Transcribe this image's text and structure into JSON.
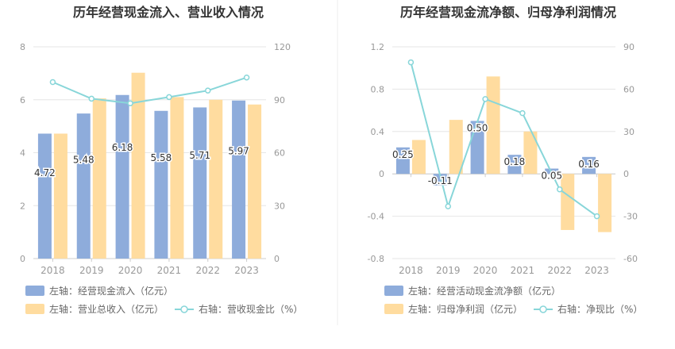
{
  "chart_data": [
    {
      "type": "bar",
      "title": "历年经营现金流入、营业收入情况",
      "categories": [
        "2018",
        "2019",
        "2020",
        "2021",
        "2022",
        "2023"
      ],
      "left_axis": {
        "ylim": [
          0,
          8
        ],
        "ticks": [
          "0",
          "2",
          "4",
          "6",
          "8"
        ]
      },
      "right_axis": {
        "ylim": [
          0,
          120
        ],
        "ticks": [
          "0",
          "30",
          "60",
          "90",
          "120"
        ]
      },
      "grid": true,
      "legend_placement": "bottom",
      "series": [
        {
          "name": "左轴：经营现金流入（亿元）",
          "kind": "bar",
          "axis": "left",
          "color": "#8eacdb",
          "values": [
            4.72,
            5.48,
            6.18,
            5.58,
            5.71,
            5.97
          ],
          "labels": [
            "4.72",
            "5.48",
            "6.18",
            "5.58",
            "5.71",
            "5.97"
          ]
        },
        {
          "name": "左轴：营业总收入（亿元）",
          "kind": "bar",
          "axis": "left",
          "color": "#ffdc9f",
          "values": [
            4.72,
            6.05,
            7.02,
            6.1,
            6.0,
            5.82
          ]
        },
        {
          "name": "右轴：营收现金比（%）",
          "kind": "line",
          "axis": "right",
          "color": "#88d6d9",
          "values": [
            100.0,
            90.6,
            88.0,
            91.5,
            95.2,
            102.6
          ]
        }
      ]
    },
    {
      "type": "bar",
      "title": "历年经营现金流净额、归母净利润情况",
      "categories": [
        "2018",
        "2019",
        "2020",
        "2021",
        "2022",
        "2023"
      ],
      "left_axis": {
        "ylim": [
          -0.8,
          1.2
        ],
        "ticks": [
          "-0.8",
          "-0.4",
          "0",
          "0.4",
          "0.8",
          "1.2"
        ]
      },
      "right_axis": {
        "ylim": [
          -60,
          90
        ],
        "ticks": [
          "-60",
          "-30",
          "0",
          "30",
          "60",
          "90"
        ]
      },
      "grid": true,
      "legend_placement": "bottom",
      "series": [
        {
          "name": "左轴：经营活动现金流净额（亿元）",
          "kind": "bar",
          "axis": "left",
          "color": "#8eacdb",
          "values": [
            0.25,
            -0.11,
            0.5,
            0.18,
            0.05,
            0.16
          ],
          "labels": [
            "0.25",
            "-0.11",
            "0.50",
            "0.18",
            "0.05",
            "0.16"
          ]
        },
        {
          "name": "左轴：归母净利润（亿元）",
          "kind": "bar",
          "axis": "left",
          "color": "#ffdc9f",
          "values": [
            0.32,
            0.51,
            0.92,
            0.4,
            -0.53,
            -0.55
          ]
        },
        {
          "name": "右轴：净现比（%）",
          "kind": "line",
          "axis": "right",
          "color": "#88d6d9",
          "values": [
            79,
            -23,
            53,
            43,
            -11,
            -30
          ]
        }
      ]
    }
  ]
}
